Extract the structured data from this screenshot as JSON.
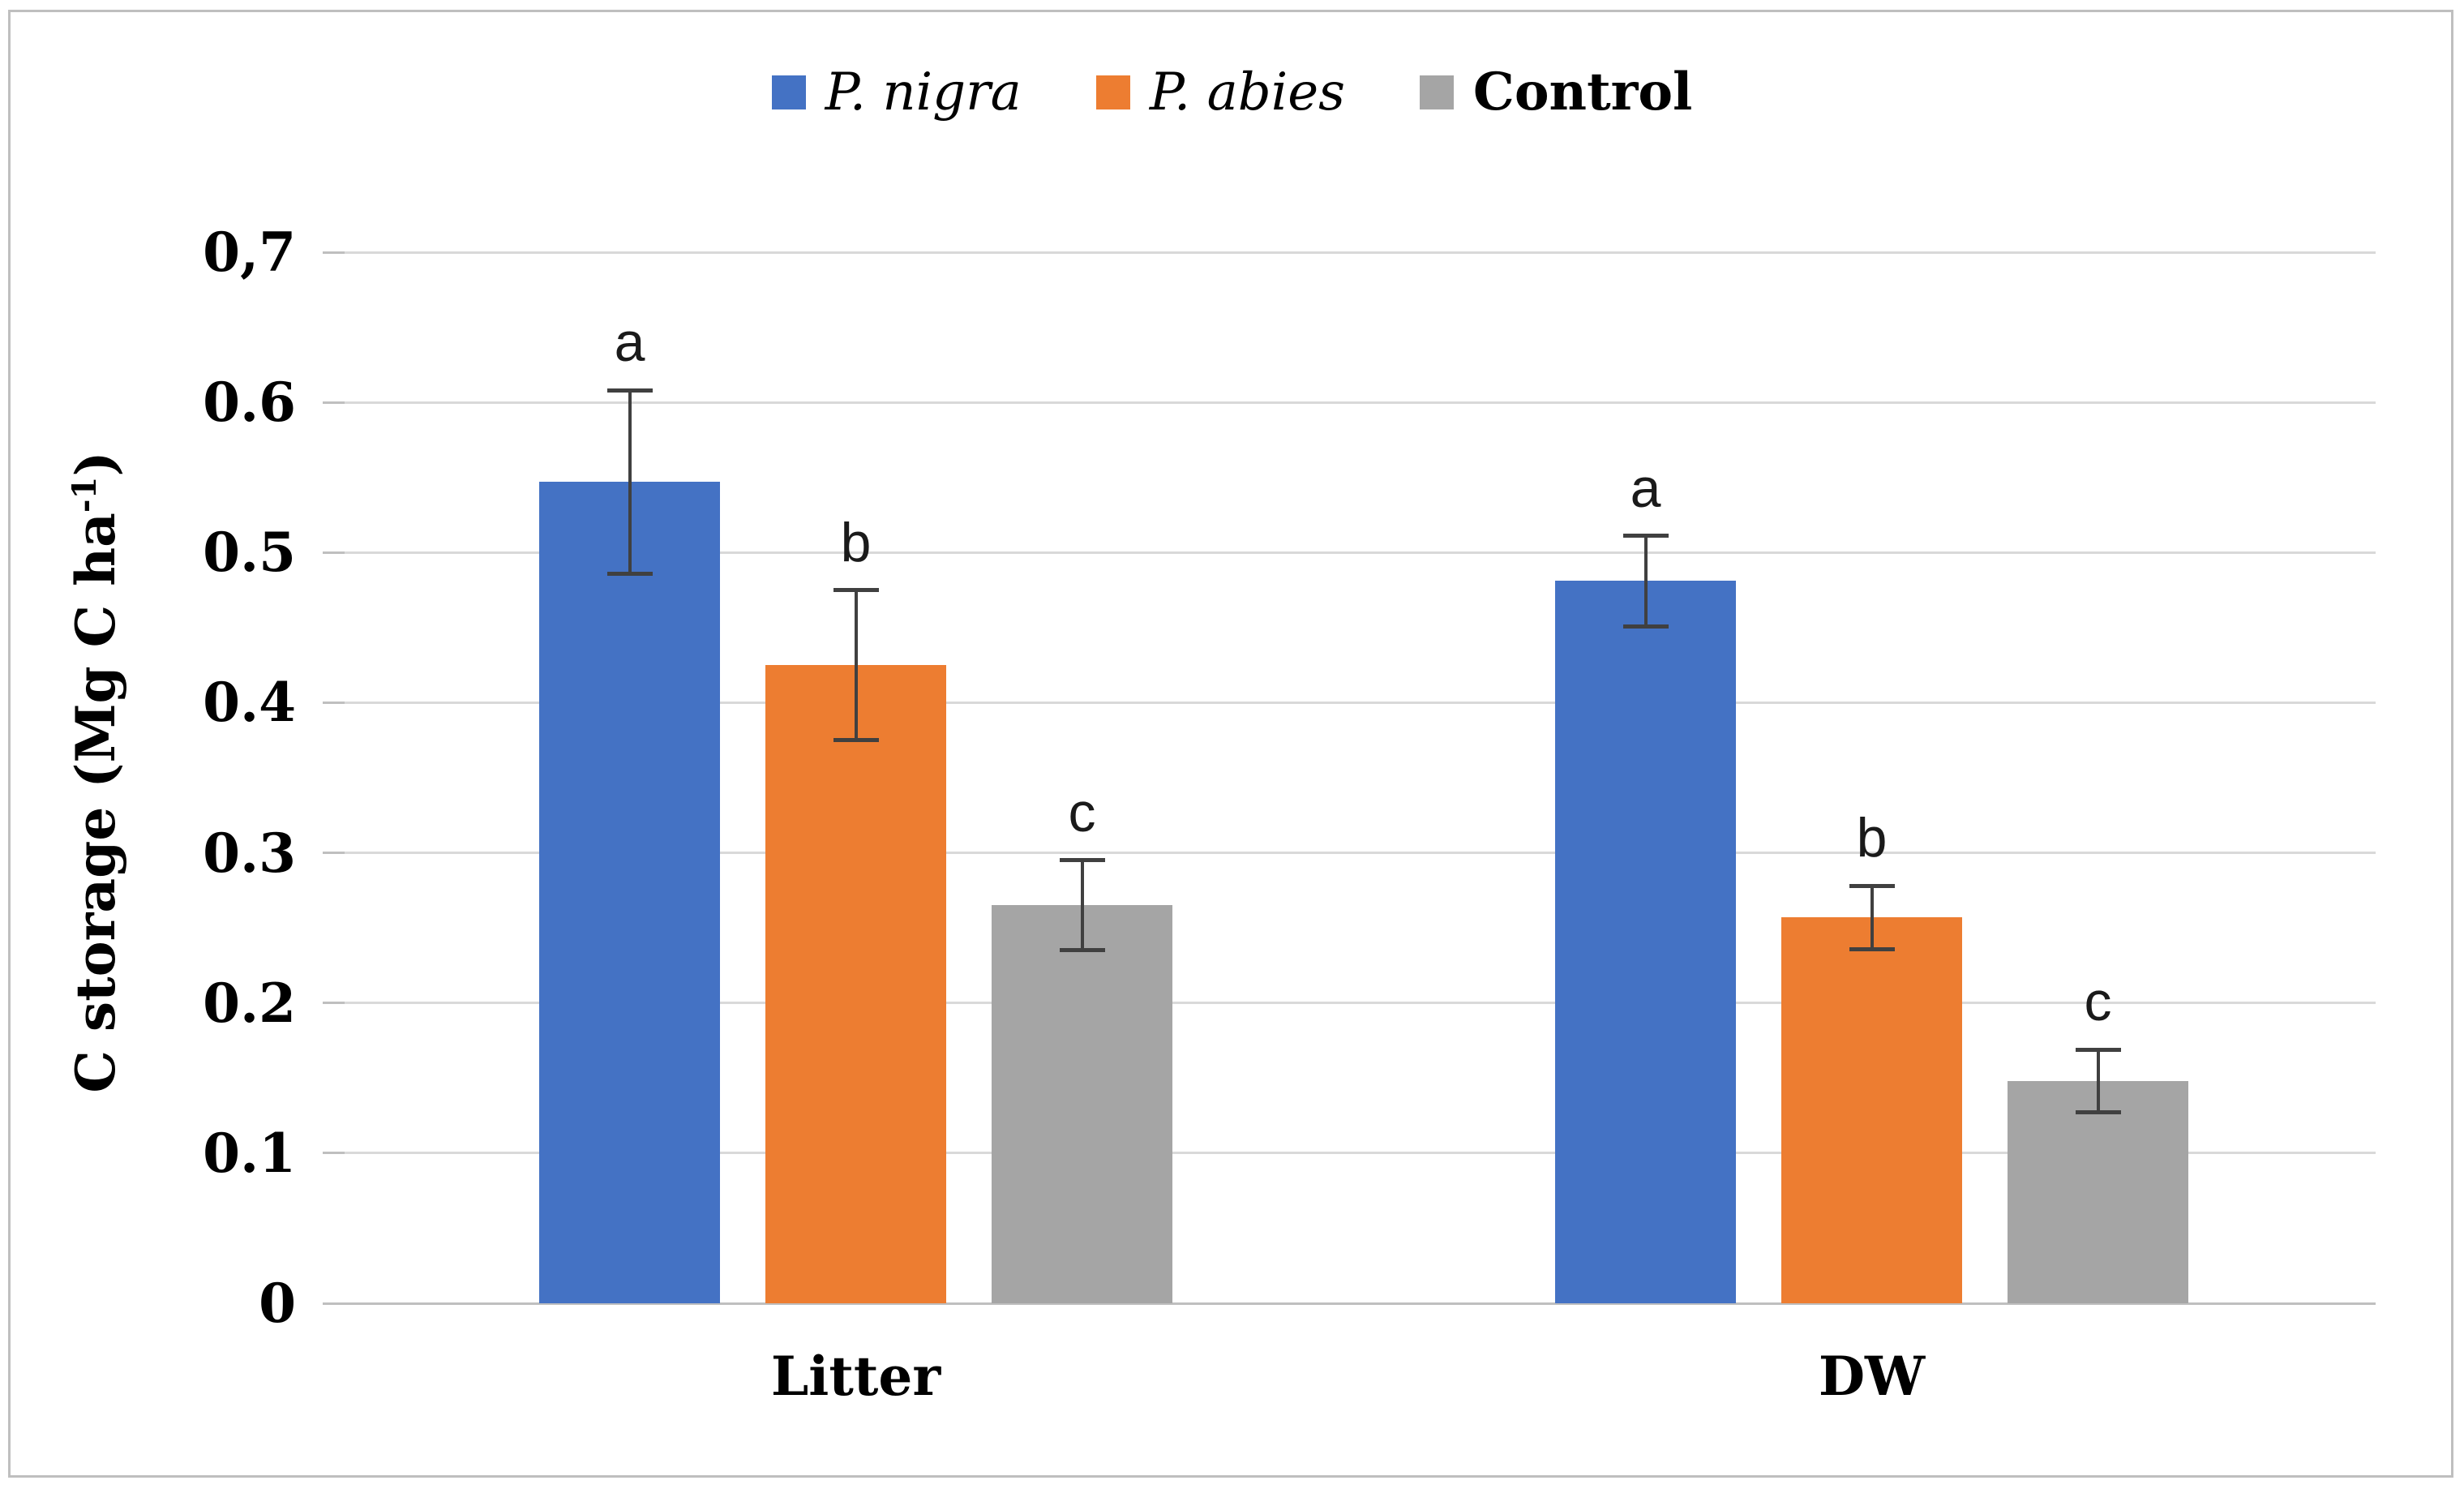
{
  "chart_data": {
    "type": "bar",
    "title": "",
    "xlabel": "",
    "ylabel": "C storage (Mg C ha-1)",
    "ylabel_parts": {
      "prefix": "C storage (Mg C ha",
      "superscript": "-1",
      "suffix": ")"
    },
    "categories": [
      "Litter",
      "DW"
    ],
    "series": [
      {
        "name": "P. nigra",
        "color": "#4472C4",
        "values": [
          0.547,
          0.481
        ],
        "errors": [
          0.061,
          0.03
        ],
        "letters": [
          "a",
          "a"
        ]
      },
      {
        "name": "P. abies",
        "color": "#ED7D31",
        "values": [
          0.425,
          0.257
        ],
        "errors": [
          0.05,
          0.021
        ],
        "letters": [
          "b",
          "b"
        ]
      },
      {
        "name": "Control",
        "color": "#A5A5A5",
        "values": [
          0.265,
          0.148
        ],
        "errors": [
          0.03,
          0.021
        ],
        "letters": [
          "c",
          "c"
        ]
      }
    ],
    "y_ticks": [
      {
        "label": "0,7",
        "value": 0.7
      },
      {
        "label": "0.6",
        "value": 0.6
      },
      {
        "label": "0.5",
        "value": 0.5
      },
      {
        "label": "0.4",
        "value": 0.4
      },
      {
        "label": "0.3",
        "value": 0.3
      },
      {
        "label": "0.2",
        "value": 0.2
      },
      {
        "label": "0.1",
        "value": 0.1
      },
      {
        "label": "0",
        "value": 0.0
      }
    ],
    "ylim": [
      0,
      0.7
    ],
    "grid": true,
    "legend_position": "top",
    "colors": {
      "gridline": "#D9D9D9",
      "axis_line": "#BFBFBF",
      "error_bar": "#404040",
      "text": "#000000",
      "frame_border": "#BFBFBF"
    }
  }
}
